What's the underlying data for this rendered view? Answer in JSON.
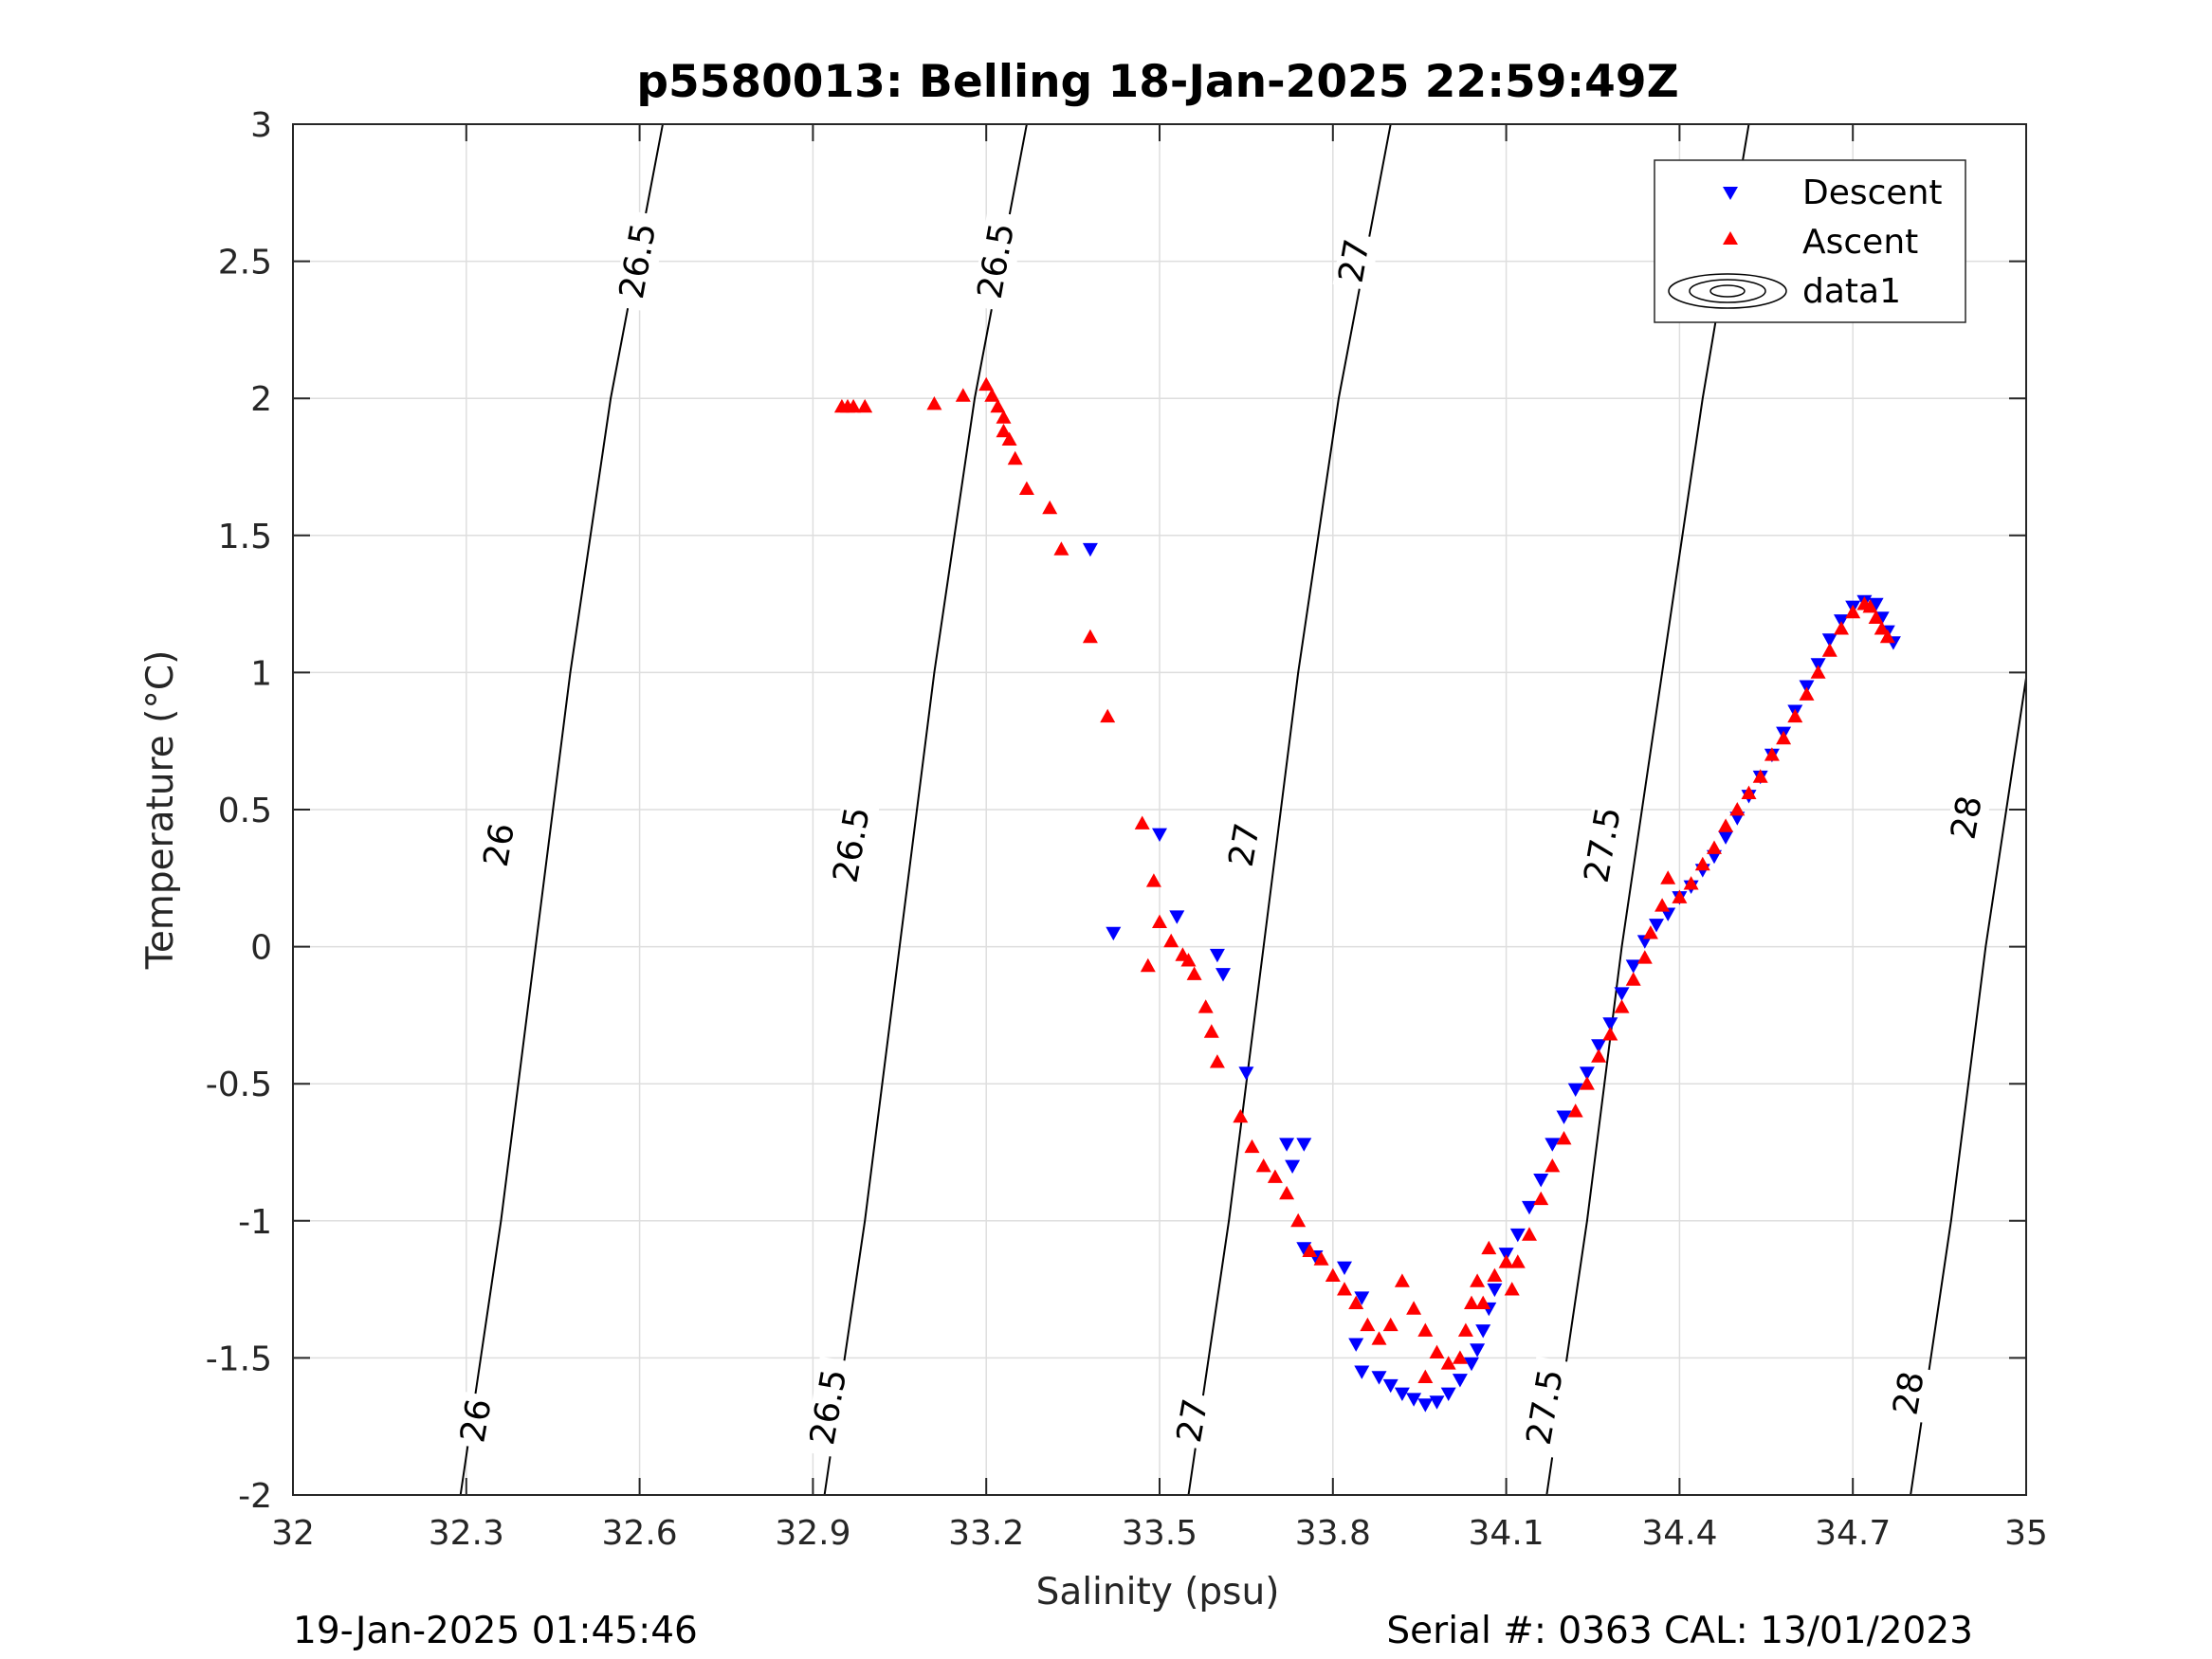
{
  "title": "p5580013: Belling 18-Jan-2025 22:59:49Z",
  "footer": {
    "left": "19-Jan-2025 01:45:46",
    "right": "Serial #: 0363  CAL: 13/01/2023"
  },
  "colors": {
    "descent": "#0000ff",
    "ascent": "#ff0000",
    "contour": "#000000",
    "grid": "#dedede"
  },
  "chart_data": {
    "type": "scatter",
    "xlabel": "Salinity (psu)",
    "ylabel": "Temperature (°C)",
    "xlim": [
      32,
      35
    ],
    "ylim": [
      -2,
      3
    ],
    "xticks": [
      32,
      32.3,
      32.6,
      32.9,
      33.2,
      33.5,
      33.8,
      34.1,
      34.4,
      34.7,
      35
    ],
    "xtick_labels": [
      "32",
      "32.3",
      "32.6",
      "32.9",
      "33.2",
      "33.5",
      "33.8",
      "34.1",
      "34.4",
      "34.7",
      "35"
    ],
    "yticks": [
      -2,
      -1.5,
      -1,
      -0.5,
      0,
      0.5,
      1,
      1.5,
      2,
      2.5,
      3
    ],
    "ytick_labels": [
      "-2",
      "-1.5",
      "-1",
      "-0.5",
      "0",
      "0.5",
      "1",
      "1.5",
      "2",
      "2.5",
      "3"
    ],
    "grid": true,
    "legend": {
      "placement": "top-right",
      "entries": [
        "Descent",
        "Ascent",
        "data1"
      ]
    },
    "contours": [
      {
        "level": "26",
        "points": [
          [
            32.29,
            -2
          ],
          [
            32.36,
            -1.0
          ],
          [
            32.42,
            0
          ],
          [
            32.48,
            1.0
          ],
          [
            32.55,
            2.0
          ],
          [
            32.64,
            3.0
          ]
        ]
      },
      {
        "level": "26.5",
        "points": [
          [
            32.92,
            -2
          ],
          [
            32.99,
            -1.0
          ],
          [
            33.05,
            0
          ],
          [
            33.11,
            1.0
          ],
          [
            33.18,
            2.0
          ],
          [
            33.27,
            3.0
          ]
        ]
      },
      {
        "level": "27",
        "points": [
          [
            33.55,
            -2
          ],
          [
            33.62,
            -1.0
          ],
          [
            33.68,
            0
          ],
          [
            33.74,
            1.0
          ],
          [
            33.81,
            2.0
          ],
          [
            33.9,
            3.0
          ]
        ]
      },
      {
        "level": "27.5",
        "points": [
          [
            34.17,
            -2
          ],
          [
            34.24,
            -1.0
          ],
          [
            34.3,
            0
          ],
          [
            34.37,
            1.0
          ],
          [
            34.44,
            2.0
          ],
          [
            34.52,
            3.0
          ]
        ]
      },
      {
        "level": "28",
        "points": [
          [
            34.8,
            -2
          ],
          [
            34.87,
            -1.0
          ],
          [
            34.93,
            0
          ],
          [
            35.0,
            0.98
          ]
        ]
      }
    ],
    "contour_labels": [
      {
        "text": "26",
        "s": 32.36,
        "t": 0.37
      },
      {
        "text": "26",
        "s": 32.32,
        "t": -1.73
      },
      {
        "text": "26.5",
        "s": 32.6,
        "t": 2.5
      },
      {
        "text": "26.5",
        "s": 32.97,
        "t": 0.37
      },
      {
        "text": "26.5",
        "s": 32.93,
        "t": -1.68
      },
      {
        "text": "26.5",
        "s": 33.22,
        "t": 2.5
      },
      {
        "text": "27",
        "s": 33.84,
        "t": 2.5
      },
      {
        "text": "27",
        "s": 33.65,
        "t": 0.37
      },
      {
        "text": "27",
        "s": 33.56,
        "t": -1.73
      },
      {
        "text": "27.5",
        "s": 34.43,
        "t": 2.45
      },
      {
        "text": "27.5",
        "s": 34.27,
        "t": 0.37
      },
      {
        "text": "27.5",
        "s": 34.17,
        "t": -1.68
      },
      {
        "text": "28",
        "s": 34.9,
        "t": 0.47
      },
      {
        "text": "28",
        "s": 34.8,
        "t": -1.63
      }
    ],
    "series": [
      {
        "name": "Descent",
        "marker": "triangle-down",
        "color": "#0000ff",
        "points": [
          [
            33.38,
            1.45
          ],
          [
            33.5,
            0.41
          ],
          [
            33.42,
            0.05
          ],
          [
            33.53,
            0.11
          ],
          [
            33.6,
            -0.03
          ],
          [
            33.61,
            -0.1
          ],
          [
            33.65,
            -0.46
          ],
          [
            33.72,
            -0.72
          ],
          [
            33.75,
            -0.72
          ],
          [
            33.73,
            -0.8
          ],
          [
            33.75,
            -1.1
          ],
          [
            33.77,
            -1.13
          ],
          [
            33.82,
            -1.17
          ],
          [
            33.85,
            -1.28
          ],
          [
            33.84,
            -1.45
          ],
          [
            33.85,
            -1.55
          ],
          [
            33.88,
            -1.57
          ],
          [
            33.9,
            -1.6
          ],
          [
            33.92,
            -1.63
          ],
          [
            33.94,
            -1.65
          ],
          [
            33.96,
            -1.67
          ],
          [
            33.98,
            -1.66
          ],
          [
            34.0,
            -1.63
          ],
          [
            34.02,
            -1.58
          ],
          [
            34.04,
            -1.52
          ],
          [
            34.05,
            -1.47
          ],
          [
            34.06,
            -1.4
          ],
          [
            34.07,
            -1.32
          ],
          [
            34.08,
            -1.25
          ],
          [
            34.1,
            -1.12
          ],
          [
            34.12,
            -1.05
          ],
          [
            34.14,
            -0.95
          ],
          [
            34.16,
            -0.85
          ],
          [
            34.18,
            -0.72
          ],
          [
            34.2,
            -0.62
          ],
          [
            34.22,
            -0.52
          ],
          [
            34.24,
            -0.46
          ],
          [
            34.26,
            -0.36
          ],
          [
            34.28,
            -0.28
          ],
          [
            34.3,
            -0.17
          ],
          [
            34.32,
            -0.07
          ],
          [
            34.34,
            0.02
          ],
          [
            34.36,
            0.08
          ],
          [
            34.38,
            0.12
          ],
          [
            34.4,
            0.18
          ],
          [
            34.42,
            0.22
          ],
          [
            34.44,
            0.28
          ],
          [
            34.46,
            0.33
          ],
          [
            34.48,
            0.4
          ],
          [
            34.5,
            0.47
          ],
          [
            34.52,
            0.55
          ],
          [
            34.54,
            0.62
          ],
          [
            34.56,
            0.7
          ],
          [
            34.58,
            0.78
          ],
          [
            34.6,
            0.86
          ],
          [
            34.62,
            0.95
          ],
          [
            34.64,
            1.03
          ],
          [
            34.66,
            1.12
          ],
          [
            34.68,
            1.19
          ],
          [
            34.7,
            1.24
          ],
          [
            34.72,
            1.26
          ],
          [
            34.74,
            1.25
          ],
          [
            34.75,
            1.2
          ],
          [
            34.76,
            1.15
          ],
          [
            34.77,
            1.11
          ]
        ]
      },
      {
        "name": "Ascent",
        "marker": "triangle-up",
        "color": "#ff0000",
        "points": [
          [
            32.95,
            1.97
          ],
          [
            32.96,
            1.97
          ],
          [
            32.97,
            1.97
          ],
          [
            32.99,
            1.97
          ],
          [
            33.11,
            1.98
          ],
          [
            33.16,
            2.01
          ],
          [
            33.2,
            2.05
          ],
          [
            33.21,
            2.01
          ],
          [
            33.22,
            1.97
          ],
          [
            33.23,
            1.93
          ],
          [
            33.23,
            1.88
          ],
          [
            33.24,
            1.85
          ],
          [
            33.25,
            1.78
          ],
          [
            33.27,
            1.67
          ],
          [
            33.31,
            1.6
          ],
          [
            33.33,
            1.45
          ],
          [
            33.38,
            1.13
          ],
          [
            33.41,
            0.84
          ],
          [
            33.47,
            0.45
          ],
          [
            33.49,
            0.24
          ],
          [
            33.5,
            0.09
          ],
          [
            33.52,
            0.02
          ],
          [
            33.54,
            -0.03
          ],
          [
            33.55,
            -0.05
          ],
          [
            33.48,
            -0.07
          ],
          [
            33.56,
            -0.1
          ],
          [
            33.58,
            -0.22
          ],
          [
            33.59,
            -0.31
          ],
          [
            33.6,
            -0.42
          ],
          [
            33.64,
            -0.62
          ],
          [
            33.66,
            -0.73
          ],
          [
            33.68,
            -0.8
          ],
          [
            33.7,
            -0.84
          ],
          [
            33.72,
            -0.9
          ],
          [
            33.74,
            -1.0
          ],
          [
            33.76,
            -1.11
          ],
          [
            33.78,
            -1.14
          ],
          [
            33.8,
            -1.2
          ],
          [
            33.82,
            -1.25
          ],
          [
            33.84,
            -1.3
          ],
          [
            33.86,
            -1.38
          ],
          [
            33.88,
            -1.43
          ],
          [
            33.9,
            -1.38
          ],
          [
            33.92,
            -1.22
          ],
          [
            33.94,
            -1.32
          ],
          [
            33.96,
            -1.4
          ],
          [
            33.98,
            -1.48
          ],
          [
            34.0,
            -1.52
          ],
          [
            33.96,
            -1.57
          ],
          [
            34.02,
            -1.5
          ],
          [
            34.03,
            -1.4
          ],
          [
            34.04,
            -1.3
          ],
          [
            34.05,
            -1.22
          ],
          [
            34.06,
            -1.3
          ],
          [
            34.07,
            -1.1
          ],
          [
            34.08,
            -1.2
          ],
          [
            34.1,
            -1.15
          ],
          [
            34.11,
            -1.25
          ],
          [
            34.12,
            -1.15
          ],
          [
            34.14,
            -1.05
          ],
          [
            34.16,
            -0.92
          ],
          [
            34.18,
            -0.8
          ],
          [
            34.2,
            -0.7
          ],
          [
            34.22,
            -0.6
          ],
          [
            34.24,
            -0.5
          ],
          [
            34.26,
            -0.4
          ],
          [
            34.28,
            -0.32
          ],
          [
            34.3,
            -0.22
          ],
          [
            34.32,
            -0.12
          ],
          [
            34.34,
            -0.04
          ],
          [
            34.35,
            0.05
          ],
          [
            34.37,
            0.15
          ],
          [
            34.38,
            0.25
          ],
          [
            34.4,
            0.18
          ],
          [
            34.42,
            0.23
          ],
          [
            34.44,
            0.3
          ],
          [
            34.46,
            0.36
          ],
          [
            34.48,
            0.44
          ],
          [
            34.5,
            0.5
          ],
          [
            34.52,
            0.56
          ],
          [
            34.54,
            0.62
          ],
          [
            34.56,
            0.7
          ],
          [
            34.58,
            0.76
          ],
          [
            34.6,
            0.84
          ],
          [
            34.62,
            0.92
          ],
          [
            34.64,
            1.0
          ],
          [
            34.66,
            1.08
          ],
          [
            34.68,
            1.16
          ],
          [
            34.7,
            1.22
          ],
          [
            34.72,
            1.25
          ],
          [
            34.73,
            1.24
          ],
          [
            34.74,
            1.2
          ],
          [
            34.75,
            1.16
          ],
          [
            34.76,
            1.13
          ]
        ]
      }
    ]
  }
}
